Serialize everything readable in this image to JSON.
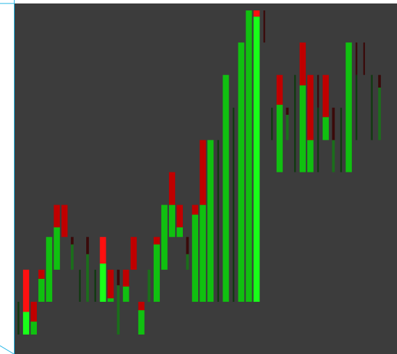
{
  "chart_data": {
    "type": "bar",
    "ylim": [
      0,
      100
    ],
    "grid": false,
    "legend": "none",
    "colors": {
      "panel": "#3c3c3c",
      "bright_green": "#19ff19",
      "green": "#10c010",
      "dark_green": "#1b6e1b",
      "very_dark_green": "#103a10",
      "bright_red": "#ff1010",
      "red": "#c00000",
      "dark_red": "#3a0a0a",
      "edge_line": "#1fb4e6"
    },
    "bars": [
      {
        "x": 0,
        "color": "very_dark_green",
        "lo": 0,
        "hi": 10.1,
        "w": 0.22
      },
      {
        "x": 1,
        "color": "bright_green",
        "lo": 0,
        "hi": 7.0,
        "w": 0.8
      },
      {
        "x": 1,
        "color": "bright_red",
        "lo": 7.0,
        "hi": 20.0,
        "w": 0.8
      },
      {
        "x": 2,
        "color": "green",
        "lo": 0,
        "hi": 4.0,
        "w": 0.8
      },
      {
        "x": 2,
        "color": "red",
        "lo": 4.0,
        "hi": 10.1,
        "w": 0.8
      },
      {
        "x": 3,
        "color": "green",
        "lo": 10.1,
        "hi": 17.2,
        "w": 0.8
      },
      {
        "x": 3,
        "color": "red",
        "lo": 17.2,
        "hi": 20.0,
        "w": 0.8
      },
      {
        "x": 4,
        "color": "green",
        "lo": 10.1,
        "hi": 30.1,
        "w": 0.8
      },
      {
        "x": 5,
        "color": "green",
        "lo": 20.0,
        "hi": 33.1,
        "w": 0.8
      },
      {
        "x": 5,
        "color": "red",
        "lo": 33.1,
        "hi": 40.0,
        "w": 0.8
      },
      {
        "x": 6,
        "color": "red",
        "lo": 30.1,
        "hi": 40.0,
        "w": 0.8
      },
      {
        "x": 7,
        "color": "dark_green",
        "lo": 20.0,
        "hi": 27.8,
        "w": 0.35
      },
      {
        "x": 7,
        "color": "dark_red",
        "lo": 27.8,
        "hi": 30.1,
        "w": 0.35
      },
      {
        "x": 8,
        "color": "very_dark_green",
        "lo": 10.1,
        "hi": 20.0,
        "w": 0.22
      },
      {
        "x": 9,
        "color": "dark_green",
        "lo": 10.1,
        "hi": 24.8,
        "w": 0.35
      },
      {
        "x": 9,
        "color": "dark_red",
        "lo": 24.8,
        "hi": 30.1,
        "w": 0.35
      },
      {
        "x": 10,
        "color": "very_dark_green",
        "lo": 10.1,
        "hi": 20.0,
        "w": 0.22
      },
      {
        "x": 11,
        "color": "bright_green",
        "lo": 10.1,
        "hi": 21.9,
        "w": 0.8
      },
      {
        "x": 11,
        "color": "bright_red",
        "lo": 21.9,
        "hi": 30.1,
        "w": 0.8
      },
      {
        "x": 12,
        "color": "green",
        "lo": 10.1,
        "hi": 11.2,
        "w": 0.8
      },
      {
        "x": 12,
        "color": "red",
        "lo": 11.2,
        "hi": 20.0,
        "w": 0.8
      },
      {
        "x": 13,
        "color": "dark_green",
        "lo": 0,
        "hi": 15.2,
        "w": 0.35
      },
      {
        "x": 13,
        "color": "dark_red",
        "lo": 15.2,
        "hi": 20.0,
        "w": 0.35
      },
      {
        "x": 14,
        "color": "green",
        "lo": 10.1,
        "hi": 14.8,
        "w": 0.8
      },
      {
        "x": 14,
        "color": "red",
        "lo": 14.8,
        "hi": 20.0,
        "w": 0.8
      },
      {
        "x": 15,
        "color": "red",
        "lo": 20.0,
        "hi": 30.1,
        "w": 0.8
      },
      {
        "x": 16,
        "color": "green",
        "lo": 0,
        "hi": 7.5,
        "w": 0.8
      },
      {
        "x": 16,
        "color": "red",
        "lo": 7.5,
        "hi": 10.1,
        "w": 0.8
      },
      {
        "x": 17,
        "color": "dark_green",
        "lo": 10.1,
        "hi": 20.0,
        "w": 0.35
      },
      {
        "x": 18,
        "color": "green",
        "lo": 10.1,
        "hi": 27.8,
        "w": 0.8
      },
      {
        "x": 18,
        "color": "red",
        "lo": 27.8,
        "hi": 30.1,
        "w": 0.8
      },
      {
        "x": 19,
        "color": "green",
        "lo": 20.0,
        "hi": 40.0,
        "w": 0.8
      },
      {
        "x": 20,
        "color": "green",
        "lo": 30.1,
        "hi": 40.0,
        "w": 0.8
      },
      {
        "x": 20,
        "color": "red",
        "lo": 40.0,
        "hi": 50.1,
        "w": 0.8
      },
      {
        "x": 21,
        "color": "green",
        "lo": 30.1,
        "hi": 33.1,
        "w": 0.8
      },
      {
        "x": 21,
        "color": "red",
        "lo": 33.1,
        "hi": 40.0,
        "w": 0.8
      },
      {
        "x": 22,
        "color": "dark_green",
        "lo": 20.0,
        "hi": 24.8,
        "w": 0.35
      },
      {
        "x": 22,
        "color": "dark_red",
        "lo": 24.8,
        "hi": 30.1,
        "w": 0.35
      },
      {
        "x": 23,
        "color": "green",
        "lo": 10.1,
        "hi": 37.0,
        "w": 0.8
      },
      {
        "x": 23,
        "color": "red",
        "lo": 37.0,
        "hi": 40.0,
        "w": 0.8
      },
      {
        "x": 24,
        "color": "green",
        "lo": 10.1,
        "hi": 40.0,
        "w": 0.8
      },
      {
        "x": 24,
        "color": "red",
        "lo": 40.0,
        "hi": 60.0,
        "w": 0.8
      },
      {
        "x": 25,
        "color": "green",
        "lo": 10.1,
        "hi": 60.0,
        "w": 0.8
      },
      {
        "x": 26,
        "color": "very_dark_green",
        "lo": 10.1,
        "hi": 60.0,
        "w": 0.22
      },
      {
        "x": 27,
        "color": "green",
        "lo": 10.1,
        "hi": 80.1,
        "w": 0.8
      },
      {
        "x": 28,
        "color": "very_dark_green",
        "lo": 10.1,
        "hi": 70.0,
        "w": 0.22
      },
      {
        "x": 29,
        "color": "green",
        "lo": 10.1,
        "hi": 90.1,
        "w": 0.8
      },
      {
        "x": 30,
        "color": "green",
        "lo": 10.1,
        "hi": 100.0,
        "w": 0.8
      },
      {
        "x": 31,
        "color": "bright_green",
        "lo": 10.1,
        "hi": 98.1,
        "w": 0.8
      },
      {
        "x": 31,
        "color": "bright_red",
        "lo": 98.1,
        "hi": 100.0,
        "w": 0.8
      },
      {
        "x": 32,
        "color": "dark_red",
        "lo": 90.1,
        "hi": 100.0,
        "w": 0.22
      },
      {
        "x": 33,
        "color": "very_dark_green",
        "lo": 60.0,
        "hi": 70.0,
        "w": 0.22
      },
      {
        "x": 34,
        "color": "green",
        "lo": 50.1,
        "hi": 70.9,
        "w": 0.8
      },
      {
        "x": 34,
        "color": "red",
        "lo": 70.9,
        "hi": 80.1,
        "w": 0.8
      },
      {
        "x": 35,
        "color": "dark_green",
        "lo": 60.0,
        "hi": 67.8,
        "w": 0.35
      },
      {
        "x": 35,
        "color": "dark_red",
        "lo": 67.8,
        "hi": 70.0,
        "w": 0.35
      },
      {
        "x": 36,
        "color": "very_dark_green",
        "lo": 50.1,
        "hi": 80.1,
        "w": 0.22
      },
      {
        "x": 37,
        "color": "green",
        "lo": 50.1,
        "hi": 76.9,
        "w": 0.8
      },
      {
        "x": 37,
        "color": "red",
        "lo": 76.9,
        "hi": 90.1,
        "w": 0.8
      },
      {
        "x": 38,
        "color": "green",
        "lo": 50.1,
        "hi": 60.0,
        "w": 0.8
      },
      {
        "x": 38,
        "color": "red",
        "lo": 60.0,
        "hi": 80.1,
        "w": 0.8
      },
      {
        "x": 39,
        "color": "very_dark_green",
        "lo": 50.1,
        "hi": 70.0,
        "w": 0.22
      },
      {
        "x": 39,
        "color": "dark_red",
        "lo": 70.0,
        "hi": 80.1,
        "w": 0.22
      },
      {
        "x": 40,
        "color": "green",
        "lo": 60.0,
        "hi": 67.1,
        "w": 0.8
      },
      {
        "x": 40,
        "color": "red",
        "lo": 67.1,
        "hi": 80.1,
        "w": 0.8
      },
      {
        "x": 41,
        "color": "dark_green",
        "lo": 50.1,
        "hi": 60.0,
        "w": 0.35
      },
      {
        "x": 41,
        "color": "dark_red",
        "lo": 60.0,
        "hi": 70.0,
        "w": 0.35
      },
      {
        "x": 42,
        "color": "very_dark_green",
        "lo": 50.1,
        "hi": 70.0,
        "w": 0.22
      },
      {
        "x": 43,
        "color": "green",
        "lo": 50.1,
        "hi": 90.1,
        "w": 0.8
      },
      {
        "x": 44,
        "color": "very_dark_green",
        "lo": 60.0,
        "hi": 80.1,
        "w": 0.22
      },
      {
        "x": 44,
        "color": "dark_red",
        "lo": 80.1,
        "hi": 90.1,
        "w": 0.22
      },
      {
        "x": 45,
        "color": "dark_red",
        "lo": 80.1,
        "hi": 90.1,
        "w": 0.22
      },
      {
        "x": 46,
        "color": "very_dark_green",
        "lo": 60.0,
        "hi": 80.1,
        "w": 0.22
      },
      {
        "x": 47,
        "color": "dark_green",
        "lo": 60.0,
        "hi": 76.2,
        "w": 0.35
      },
      {
        "x": 47,
        "color": "dark_red",
        "lo": 76.2,
        "hi": 80.1,
        "w": 0.35
      }
    ]
  }
}
